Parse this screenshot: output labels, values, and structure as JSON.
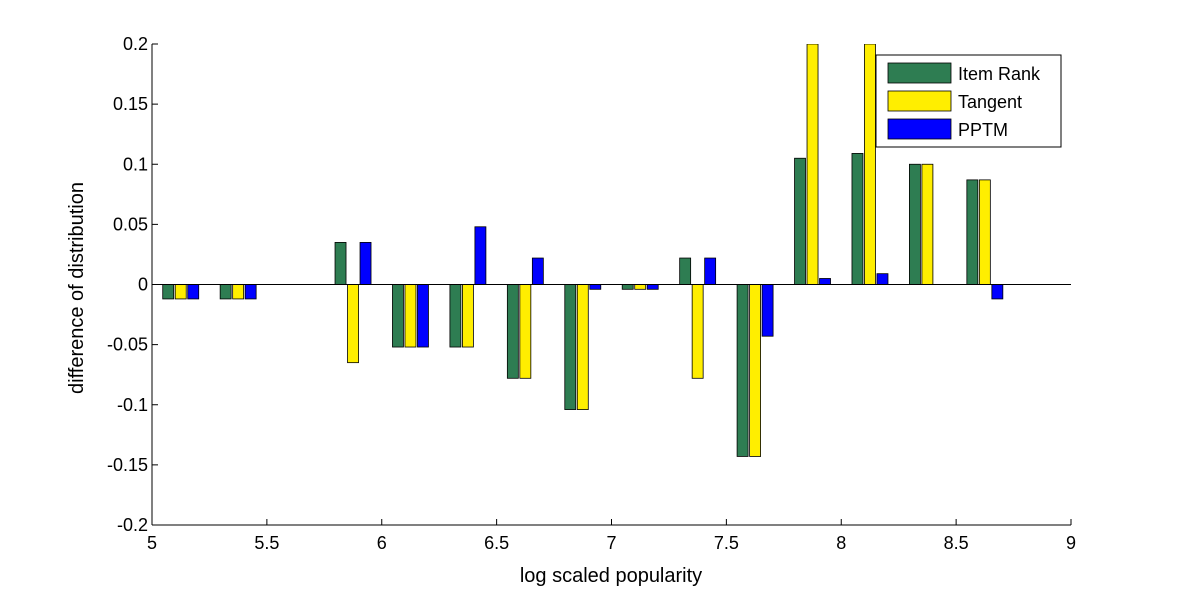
{
  "chart_data": {
    "type": "bar",
    "xlabel": "log scaled popularity",
    "ylabel": "difference of distribution",
    "xlim": [
      5,
      9
    ],
    "ylim": [
      -0.2,
      0.2
    ],
    "x_ticks": [
      "5",
      "5.5",
      "6",
      "6.5",
      "7",
      "7.5",
      "8",
      "8.5",
      "9"
    ],
    "y_ticks": [
      "-0.2",
      "-0.15",
      "-0.1",
      "-0.05",
      "0",
      "0.05",
      "0.1",
      "0.15",
      "0.2"
    ],
    "grid": false,
    "legend_position": "top-right",
    "x": [
      5.125,
      5.375,
      5.875,
      6.125,
      6.375,
      6.625,
      6.875,
      7.125,
      7.375,
      7.625,
      7.875,
      8.125,
      8.375,
      8.625
    ],
    "series": [
      {
        "name": "Item Rank",
        "color": "#2e7d52",
        "values": [
          -0.012,
          -0.012,
          0.035,
          -0.052,
          -0.052,
          -0.078,
          -0.104,
          -0.004,
          0.022,
          -0.143,
          0.105,
          0.109,
          0.1,
          0.087
        ]
      },
      {
        "name": "Tangent",
        "color": "#ffee00",
        "values": [
          -0.012,
          -0.012,
          -0.065,
          -0.052,
          -0.052,
          -0.078,
          -0.104,
          -0.004,
          -0.078,
          -0.143,
          0.2,
          0.2,
          0.1,
          0.087
        ]
      },
      {
        "name": "PPTM",
        "color": "#0000ff",
        "values": [
          -0.012,
          -0.012,
          0.035,
          -0.052,
          0.048,
          0.022,
          -0.004,
          -0.004,
          0.022,
          -0.043,
          0.005,
          0.009,
          0,
          -0.012
        ]
      }
    ]
  }
}
